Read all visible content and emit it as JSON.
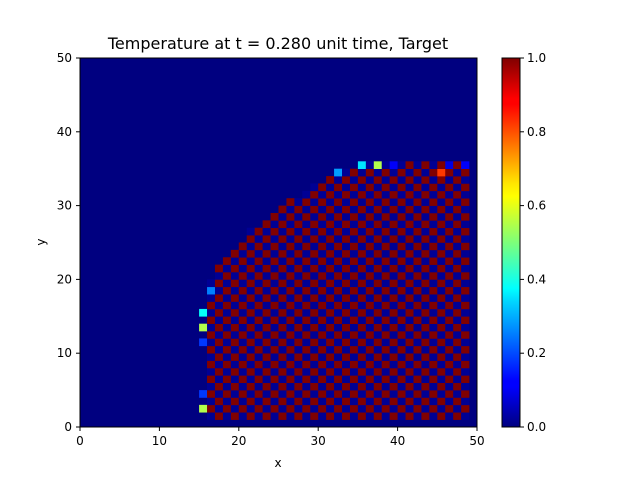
{
  "chart_data": {
    "type": "heatmap",
    "title": "Temperature at t = 0.280 unit time, Target",
    "xlabel": "x",
    "ylabel": "y",
    "xlim": [
      0,
      50
    ],
    "ylim": [
      0,
      50
    ],
    "x_ticks": [
      "0",
      "10",
      "20",
      "30",
      "40",
      "50"
    ],
    "y_ticks": [
      "0",
      "10",
      "20",
      "30",
      "40",
      "50"
    ],
    "grid_size": [
      50,
      50
    ],
    "colormap": "jet",
    "colorbar": {
      "range": [
        0.0,
        1.0
      ],
      "ticks": [
        "0.0",
        "0.2",
        "0.4",
        "0.6",
        "0.8",
        "1.0"
      ]
    },
    "background_value": 0.0,
    "pattern": "checkerboard of 1.0 and ~0.0 cells inside a region bounded by x >= 16, x <= 48, y <= 35 with a rounded upper-left boundary",
    "region": {
      "x_min": 16,
      "x_max": 48,
      "y_min": 1,
      "y_max": 35,
      "upper_left_arc_center": [
        48,
        0
      ],
      "upper_left_arc_radius": 37.5
    },
    "special_cells": [
      {
        "x": 15,
        "y": 2,
        "value": 0.55
      },
      {
        "x": 15,
        "y": 4,
        "value": 0.18
      },
      {
        "x": 15,
        "y": 11,
        "value": 0.18
      },
      {
        "x": 15,
        "y": 13,
        "value": 0.55
      },
      {
        "x": 15,
        "y": 15,
        "value": 0.38
      },
      {
        "x": 16,
        "y": 18,
        "value": 0.25
      },
      {
        "x": 32,
        "y": 34,
        "value": 0.28
      },
      {
        "x": 35,
        "y": 35,
        "value": 0.35
      },
      {
        "x": 37,
        "y": 35,
        "value": 0.55
      },
      {
        "x": 39,
        "y": 35,
        "value": 0.12
      },
      {
        "x": 45,
        "y": 34,
        "value": 0.82
      },
      {
        "x": 46,
        "y": 35,
        "value": 0.1
      },
      {
        "x": 48,
        "y": 35,
        "value": 0.12
      }
    ]
  }
}
